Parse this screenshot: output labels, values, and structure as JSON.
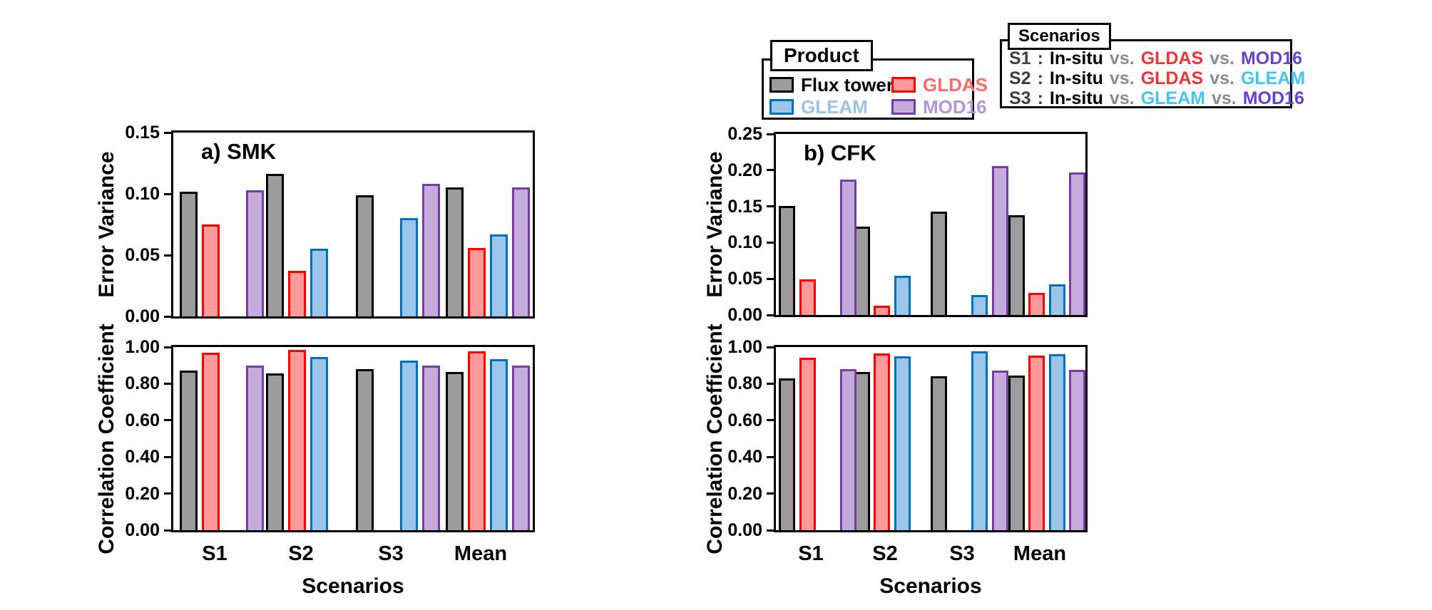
{
  "figure": {
    "background": "#ffffff",
    "categories": [
      "S1",
      "S2",
      "S3",
      "Mean"
    ],
    "xlabel": "Scenarios"
  },
  "products": [
    {
      "name": "Flux tower",
      "fill": "#9B9B9B",
      "stroke": "#000000",
      "text_color": "#000000"
    },
    {
      "name": "GLDAS",
      "fill": "#FF9A9A",
      "stroke": "#FF0000",
      "text_color": "#FF6A6A"
    },
    {
      "name": "GLEAM",
      "fill": "#9CC6E9",
      "stroke": "#0070C0",
      "text_color": "#9DC3E6"
    },
    {
      "name": "MOD16",
      "fill": "#C6ACDD",
      "stroke": "#7B3BA5",
      "text_color": "#B196D8"
    }
  ],
  "legend_product": {
    "title": "Product"
  },
  "legend_scenarios": {
    "title": "Scenarios",
    "vs_text": "vs.",
    "separator": ":",
    "colors": {
      "label": "#3F3F3F",
      "In-situ": "#000000",
      "vs": "#8C8C8C",
      "GLDAS": "#F03434",
      "GLEAM": "#3EC6F4",
      "MOD16": "#6740D4"
    },
    "rows": [
      {
        "label": "S1",
        "comparison": [
          "In-situ",
          "GLDAS",
          "MOD16"
        ]
      },
      {
        "label": "S2",
        "comparison": [
          "In-situ",
          "GLDAS",
          "GLEAM"
        ]
      },
      {
        "label": "S3",
        "comparison": [
          "In-situ",
          "GLEAM",
          "MOD16"
        ]
      }
    ]
  },
  "chart_data": [
    {
      "id": "smk_error_variance",
      "type": "bar",
      "panel_label": "a) SMK",
      "ylabel": "Error Variance",
      "ylim": [
        0,
        0.15
      ],
      "yticks": [
        0.0,
        0.05,
        0.1,
        0.15
      ],
      "grid": false,
      "categories": [
        "S1",
        "S2",
        "S3",
        "Mean"
      ],
      "series": [
        {
          "name": "Flux tower",
          "values": [
            0.102,
            0.116,
            0.099,
            0.105
          ]
        },
        {
          "name": "GLDAS",
          "values": [
            0.075,
            0.037,
            null,
            0.056
          ]
        },
        {
          "name": "GLEAM",
          "values": [
            null,
            0.055,
            0.08,
            0.067
          ]
        },
        {
          "name": "MOD16",
          "values": [
            0.103,
            null,
            0.108,
            0.105
          ]
        }
      ]
    },
    {
      "id": "cfk_error_variance",
      "type": "bar",
      "panel_label": "b) CFK",
      "ylabel": "Error Variance",
      "ylim": [
        0,
        0.25
      ],
      "yticks": [
        0.0,
        0.05,
        0.1,
        0.15,
        0.2,
        0.25
      ],
      "grid": false,
      "categories": [
        "S1",
        "S2",
        "S3",
        "Mean"
      ],
      "series": [
        {
          "name": "Flux tower",
          "values": [
            0.151,
            0.122,
            0.143,
            0.138
          ]
        },
        {
          "name": "GLDAS",
          "values": [
            0.049,
            0.013,
            null,
            0.031
          ]
        },
        {
          "name": "GLEAM",
          "values": [
            null,
            0.054,
            0.028,
            0.042
          ]
        },
        {
          "name": "MOD16",
          "values": [
            0.187,
            null,
            0.206,
            0.197
          ]
        }
      ]
    },
    {
      "id": "smk_correlation",
      "type": "bar",
      "panel_label": "",
      "ylabel": "Correlation Coefficient",
      "xlabel": "Scenarios",
      "ylim": [
        0,
        1.0
      ],
      "yticks": [
        0.0,
        0.2,
        0.4,
        0.6,
        0.8,
        1.0
      ],
      "grid": false,
      "categories": [
        "S1",
        "S2",
        "S3",
        "Mean"
      ],
      "series": [
        {
          "name": "Flux tower",
          "values": [
            0.87,
            0.855,
            0.88,
            0.865
          ]
        },
        {
          "name": "GLDAS",
          "values": [
            0.97,
            0.985,
            null,
            0.975
          ]
        },
        {
          "name": "GLEAM",
          "values": [
            null,
            0.945,
            0.925,
            0.935
          ]
        },
        {
          "name": "MOD16",
          "values": [
            0.9,
            null,
            0.9,
            0.9
          ]
        }
      ]
    },
    {
      "id": "cfk_correlation",
      "type": "bar",
      "panel_label": "",
      "ylabel": "Correlation Coefficient",
      "xlabel": "Scenarios",
      "ylim": [
        0,
        1.0
      ],
      "yticks": [
        0.0,
        0.2,
        0.4,
        0.6,
        0.8,
        1.0
      ],
      "grid": false,
      "categories": [
        "S1",
        "S2",
        "S3",
        "Mean"
      ],
      "series": [
        {
          "name": "Flux tower",
          "values": [
            0.83,
            0.865,
            0.84,
            0.845
          ]
        },
        {
          "name": "GLDAS",
          "values": [
            0.94,
            0.965,
            null,
            0.955
          ]
        },
        {
          "name": "GLEAM",
          "values": [
            null,
            0.95,
            0.975,
            0.96
          ]
        },
        {
          "name": "MOD16",
          "values": [
            0.88,
            null,
            0.87,
            0.875
          ]
        }
      ]
    }
  ]
}
